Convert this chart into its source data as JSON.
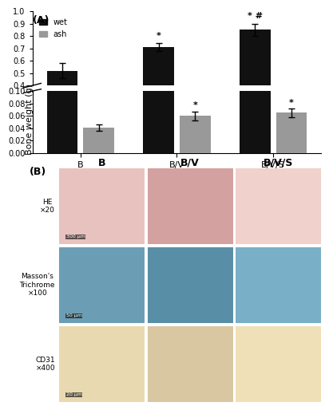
{
  "groups": [
    "B",
    "B/V",
    "B/V/S"
  ],
  "wet_values": [
    0.52,
    0.71,
    0.85
  ],
  "wet_errors": [
    0.06,
    0.03,
    0.05
  ],
  "ash_values": [
    0.041,
    0.06,
    0.065
  ],
  "ash_errors": [
    0.005,
    0.007,
    0.007
  ],
  "wet_color": "#111111",
  "ash_color": "#999999",
  "upper_ylim": [
    0.4,
    1.0
  ],
  "lower_ylim": [
    0.0,
    0.1
  ],
  "upper_yticks": [
    0.4,
    0.5,
    0.6,
    0.7,
    0.8,
    0.9,
    1.0
  ],
  "lower_yticks": [
    0.0,
    0.02,
    0.04,
    0.06,
    0.08,
    0.1
  ],
  "ylabel": "Bone weight (g)",
  "legend_labels": [
    "wet",
    "ash"
  ],
  "panel_A_label": "(A)",
  "panel_B_label": "(B)",
  "row_labels": [
    "HE\n×20",
    "Masson's\nTrichrome\n×100",
    "CD31\n×400"
  ],
  "col_labels": [
    "B",
    "B/V",
    "B/V/S"
  ],
  "scale_bars": [
    "300 μm",
    "50 μm",
    "20 μm"
  ],
  "he_colors": [
    "#e8c4c0",
    "#d4a0a0",
    "#f0d0cc"
  ],
  "masson_colors": [
    "#6a9fb5",
    "#5a8fa5",
    "#7aafc5"
  ],
  "cd31_colors": [
    "#e8d8b0",
    "#d8c8a0",
    "#f0e0b8"
  ],
  "background": "#ffffff"
}
